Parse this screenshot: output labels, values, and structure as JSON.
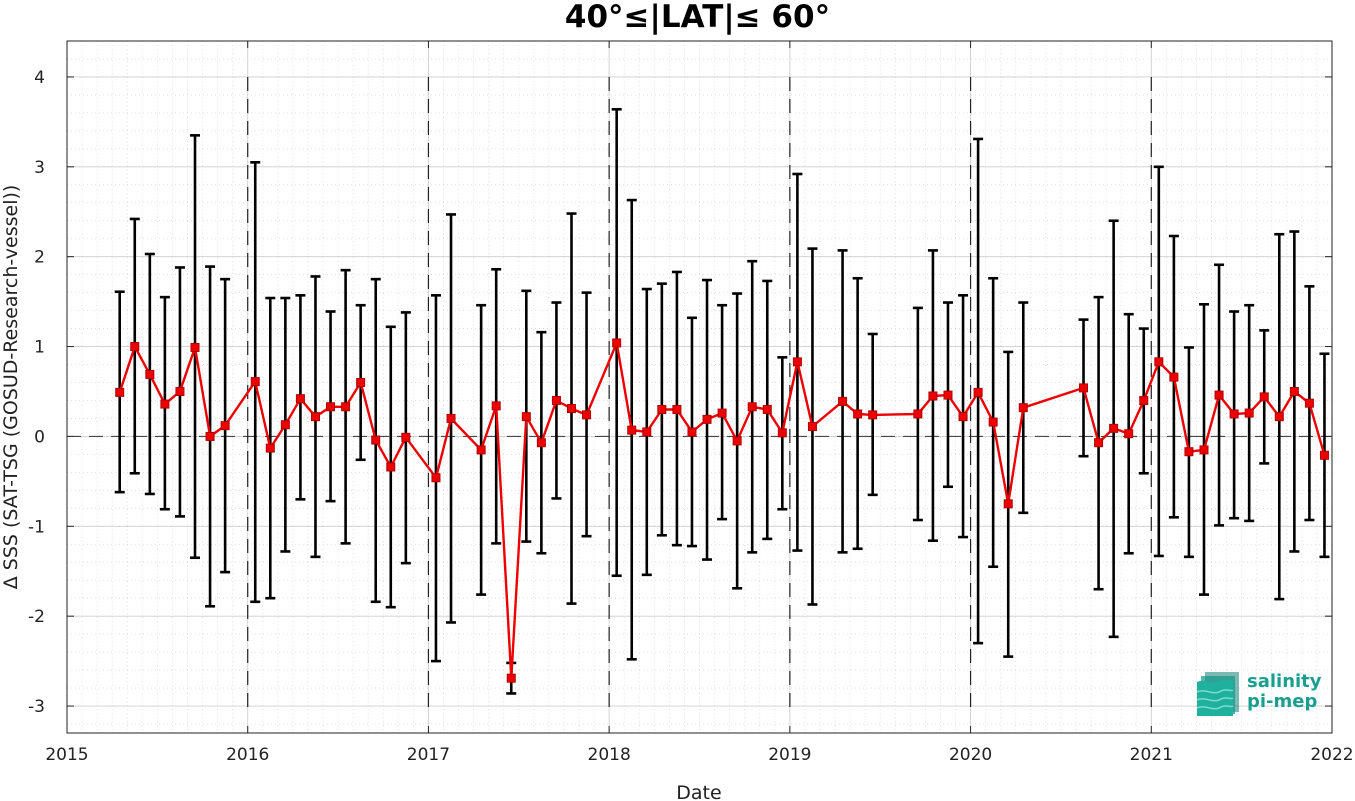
{
  "chart_data": {
    "type": "line",
    "title": "40°≤|LAT|≤ 60°",
    "xlabel": "Date",
    "ylabel": "Δ SSS (SAT-TSG (GOSUD-Research-vessel))",
    "x_ticks": [
      "2015",
      "2016",
      "2017",
      "2018",
      "2019",
      "2020",
      "2021",
      "2022"
    ],
    "y_ticks": [
      "-3",
      "-2",
      "-1",
      "0",
      "1",
      "2",
      "3",
      "4"
    ],
    "xlim": [
      2015.0,
      2022.0
    ],
    "ylim": [
      -3.3,
      4.4
    ],
    "grid": true,
    "year_separators": [
      2016,
      2017,
      2018,
      2019,
      2020,
      2021
    ],
    "zero_line": 0,
    "series": [
      {
        "color": "#ee0000",
        "errorbar_color": "#000000",
        "points": [
          {
            "x": "2015-04",
            "y": 0.49,
            "lo": -0.62,
            "hi": 1.61
          },
          {
            "x": "2015-05",
            "y": 1.0,
            "lo": -0.41,
            "hi": 2.42
          },
          {
            "x": "2015-06",
            "y": 0.69,
            "lo": -0.64,
            "hi": 2.03
          },
          {
            "x": "2015-07",
            "y": 0.36,
            "lo": -0.81,
            "hi": 1.55
          },
          {
            "x": "2015-08",
            "y": 0.5,
            "lo": -0.89,
            "hi": 1.88
          },
          {
            "x": "2015-09",
            "y": 0.99,
            "lo": -1.35,
            "hi": 3.35
          },
          {
            "x": "2015-10",
            "y": 0.0,
            "lo": -1.89,
            "hi": 1.89
          },
          {
            "x": "2015-11",
            "y": 0.12,
            "lo": -1.51,
            "hi": 1.75
          },
          {
            "x": "2016-01",
            "y": 0.61,
            "lo": -1.84,
            "hi": 3.05
          },
          {
            "x": "2016-02",
            "y": -0.13,
            "lo": -1.8,
            "hi": 1.54
          },
          {
            "x": "2016-03",
            "y": 0.13,
            "lo": -1.28,
            "hi": 1.54
          },
          {
            "x": "2016-04",
            "y": 0.42,
            "lo": -0.7,
            "hi": 1.57
          },
          {
            "x": "2016-05",
            "y": 0.22,
            "lo": -1.34,
            "hi": 1.78
          },
          {
            "x": "2016-06",
            "y": 0.33,
            "lo": -0.72,
            "hi": 1.39
          },
          {
            "x": "2016-07",
            "y": 0.33,
            "lo": -1.19,
            "hi": 1.85
          },
          {
            "x": "2016-08",
            "y": 0.6,
            "lo": -0.26,
            "hi": 1.46
          },
          {
            "x": "2016-09",
            "y": -0.04,
            "lo": -1.84,
            "hi": 1.75
          },
          {
            "x": "2016-10",
            "y": -0.34,
            "lo": -1.9,
            "hi": 1.22
          },
          {
            "x": "2016-11",
            "y": -0.01,
            "lo": -1.41,
            "hi": 1.38
          },
          {
            "x": "2017-01",
            "y": -0.46,
            "lo": -2.5,
            "hi": 1.57
          },
          {
            "x": "2017-02",
            "y": 0.2,
            "lo": -2.07,
            "hi": 2.47
          },
          {
            "x": "2017-04",
            "y": -0.15,
            "lo": -1.76,
            "hi": 1.46
          },
          {
            "x": "2017-05",
            "y": 0.34,
            "lo": -1.19,
            "hi": 1.86
          },
          {
            "x": "2017-06",
            "y": -2.69,
            "lo": -2.86,
            "hi": -2.52
          },
          {
            "x": "2017-07",
            "y": 0.22,
            "lo": -1.17,
            "hi": 1.62
          },
          {
            "x": "2017-08",
            "y": -0.07,
            "lo": -1.3,
            "hi": 1.16
          },
          {
            "x": "2017-09",
            "y": 0.4,
            "lo": -0.69,
            "hi": 1.49
          },
          {
            "x": "2017-10",
            "y": 0.31,
            "lo": -1.86,
            "hi": 2.48
          },
          {
            "x": "2017-11",
            "y": 0.24,
            "lo": -1.11,
            "hi": 1.6
          },
          {
            "x": "2018-01",
            "y": 1.04,
            "lo": -1.55,
            "hi": 3.64
          },
          {
            "x": "2018-02",
            "y": 0.07,
            "lo": -2.48,
            "hi": 2.63
          },
          {
            "x": "2018-03",
            "y": 0.05,
            "lo": -1.54,
            "hi": 1.64
          },
          {
            "x": "2018-04",
            "y": 0.3,
            "lo": -1.1,
            "hi": 1.7
          },
          {
            "x": "2018-05",
            "y": 0.3,
            "lo": -1.21,
            "hi": 1.83
          },
          {
            "x": "2018-06",
            "y": 0.05,
            "lo": -1.22,
            "hi": 1.32
          },
          {
            "x": "2018-07",
            "y": 0.19,
            "lo": -1.37,
            "hi": 1.74
          },
          {
            "x": "2018-08",
            "y": 0.26,
            "lo": -0.92,
            "hi": 1.46
          },
          {
            "x": "2018-09",
            "y": -0.05,
            "lo": -1.69,
            "hi": 1.59
          },
          {
            "x": "2018-10",
            "y": 0.33,
            "lo": -1.29,
            "hi": 1.95
          },
          {
            "x": "2018-11",
            "y": 0.3,
            "lo": -1.14,
            "hi": 1.73
          },
          {
            "x": "2018-12",
            "y": 0.04,
            "lo": -0.81,
            "hi": 0.88
          },
          {
            "x": "2019-01",
            "y": 0.83,
            "lo": -1.27,
            "hi": 2.92
          },
          {
            "x": "2019-02",
            "y": 0.11,
            "lo": -1.87,
            "hi": 2.09
          },
          {
            "x": "2019-04",
            "y": 0.39,
            "lo": -1.29,
            "hi": 2.07
          },
          {
            "x": "2019-05",
            "y": 0.25,
            "lo": -1.25,
            "hi": 1.76
          },
          {
            "x": "2019-06",
            "y": 0.24,
            "lo": -0.65,
            "hi": 1.14
          },
          {
            "x": "2019-09",
            "y": 0.25,
            "lo": -0.93,
            "hi": 1.43
          },
          {
            "x": "2019-10",
            "y": 0.45,
            "lo": -1.16,
            "hi": 2.07
          },
          {
            "x": "2019-11",
            "y": 0.46,
            "lo": -0.56,
            "hi": 1.49
          },
          {
            "x": "2019-12",
            "y": 0.22,
            "lo": -1.12,
            "hi": 1.57
          },
          {
            "x": "2020-01",
            "y": 0.49,
            "lo": -2.3,
            "hi": 3.31
          },
          {
            "x": "2020-02",
            "y": 0.16,
            "lo": -1.45,
            "hi": 1.76
          },
          {
            "x": "2020-03",
            "y": -0.75,
            "lo": -2.45,
            "hi": 0.94
          },
          {
            "x": "2020-04",
            "y": 0.32,
            "lo": -0.85,
            "hi": 1.49
          },
          {
            "x": "2020-08",
            "y": 0.54,
            "lo": -0.22,
            "hi": 1.3
          },
          {
            "x": "2020-09",
            "y": -0.07,
            "lo": -1.7,
            "hi": 1.55
          },
          {
            "x": "2020-10",
            "y": 0.09,
            "lo": -2.23,
            "hi": 2.4
          },
          {
            "x": "2020-11",
            "y": 0.03,
            "lo": -1.3,
            "hi": 1.36
          },
          {
            "x": "2020-12",
            "y": 0.4,
            "lo": -0.41,
            "hi": 1.2
          },
          {
            "x": "2021-01",
            "y": 0.83,
            "lo": -1.33,
            "hi": 3.0
          },
          {
            "x": "2021-02",
            "y": 0.66,
            "lo": -0.9,
            "hi": 2.23
          },
          {
            "x": "2021-03",
            "y": -0.17,
            "lo": -1.34,
            "hi": 0.99
          },
          {
            "x": "2021-04",
            "y": -0.15,
            "lo": -1.76,
            "hi": 1.47
          },
          {
            "x": "2021-05",
            "y": 0.46,
            "lo": -0.99,
            "hi": 1.91
          },
          {
            "x": "2021-06",
            "y": 0.25,
            "lo": -0.91,
            "hi": 1.39
          },
          {
            "x": "2021-07",
            "y": 0.26,
            "lo": -0.94,
            "hi": 1.46
          },
          {
            "x": "2021-08",
            "y": 0.44,
            "lo": -0.3,
            "hi": 1.18
          },
          {
            "x": "2021-09",
            "y": 0.22,
            "lo": -1.81,
            "hi": 2.25
          },
          {
            "x": "2021-10",
            "y": 0.5,
            "lo": -1.28,
            "hi": 2.28
          },
          {
            "x": "2021-11",
            "y": 0.37,
            "lo": -0.93,
            "hi": 1.67
          },
          {
            "x": "2021-12",
            "y": -0.21,
            "lo": -1.34,
            "hi": 0.92
          }
        ]
      }
    ]
  },
  "logo": {
    "line1": "salinity",
    "line2": "pi-mep",
    "color": "#1a9e8f"
  }
}
